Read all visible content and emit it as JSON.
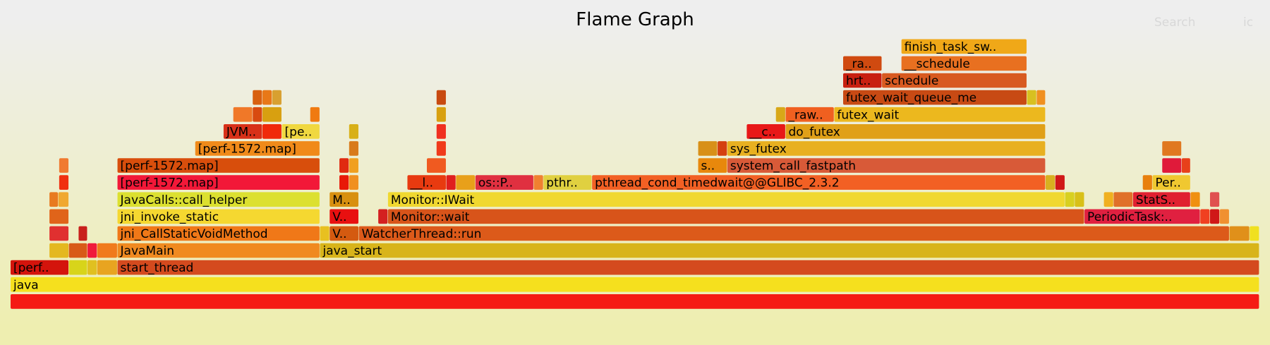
{
  "chart_data": {
    "type": "flame",
    "title": "Flame Graph",
    "search_label": "Search",
    "ic_label": "ic",
    "xlim": [
      0,
      1542
    ],
    "frames": [
      {
        "name": null,
        "level": 0,
        "start": 0,
        "width": 1542,
        "color": "#f51a14"
      },
      {
        "name": "java",
        "level": 1,
        "start": 0,
        "width": 1542,
        "color": "#f5e01e"
      },
      {
        "name": "[perf..",
        "level": 2,
        "start": 0,
        "width": 72,
        "color": "#d4140c"
      },
      {
        "name": null,
        "level": 2,
        "start": 72,
        "width": 23,
        "color": "#d8d41a"
      },
      {
        "name": null,
        "level": 2,
        "start": 95,
        "width": 12,
        "color": "#e0c020"
      },
      {
        "name": null,
        "level": 2,
        "start": 107,
        "width": 25,
        "color": "#e8a420"
      },
      {
        "name": "start_thread",
        "level": 2,
        "start": 132,
        "width": 1410,
        "color": "#d44a1e"
      },
      {
        "name": null,
        "level": 3,
        "start": 48,
        "width": 24,
        "color": "#e4b820"
      },
      {
        "name": null,
        "level": 3,
        "start": 72,
        "width": 23,
        "color": "#d85a18"
      },
      {
        "name": null,
        "level": 3,
        "start": 95,
        "width": 12,
        "color": "#f01a3c"
      },
      {
        "name": null,
        "level": 3,
        "start": 107,
        "width": 25,
        "color": "#f07a1c"
      },
      {
        "name": "JavaMain",
        "level": 3,
        "start": 132,
        "width": 250,
        "color": "#f08a20"
      },
      {
        "name": "java_start",
        "level": 3,
        "start": 382,
        "width": 1160,
        "color": "#d8b41a"
      },
      {
        "name": null,
        "level": 4,
        "start": 48,
        "width": 24,
        "color": "#e03030"
      },
      {
        "name": null,
        "level": 4,
        "start": 84,
        "width": 11,
        "color": "#c8201c"
      },
      {
        "name": "jni_CallStaticVoidMethod",
        "level": 4,
        "start": 132,
        "width": 250,
        "color": "#f07818"
      },
      {
        "name": null,
        "level": 4,
        "start": 382,
        "width": 12,
        "color": "#e8c020"
      },
      {
        "name": "V..",
        "level": 4,
        "start": 394,
        "width": 36,
        "color": "#d45a10"
      },
      {
        "name": "WatcherThread::run",
        "level": 4,
        "start": 430,
        "width": 1075,
        "color": "#dc5a1a"
      },
      {
        "name": null,
        "level": 4,
        "start": 1505,
        "width": 25,
        "color": "#e0901a"
      },
      {
        "name": null,
        "level": 4,
        "start": 1530,
        "width": 12,
        "color": "#f0e020"
      },
      {
        "name": null,
        "level": 5,
        "start": 48,
        "width": 24,
        "color": "#e0641a"
      },
      {
        "name": "jni_invoke_static",
        "level": 5,
        "start": 132,
        "width": 250,
        "color": "#f5d830"
      },
      {
        "name": "V..",
        "level": 5,
        "start": 394,
        "width": 36,
        "color": "#e81010"
      },
      {
        "name": null,
        "level": 5,
        "start": 454,
        "width": 12,
        "color": "#d42020"
      },
      {
        "name": "Monitor::wait",
        "level": 5,
        "start": 466,
        "width": 860,
        "color": "#d8541a"
      },
      {
        "name": "PeriodicTask:..",
        "level": 5,
        "start": 1326,
        "width": 143,
        "color": "#e02040"
      },
      {
        "name": null,
        "level": 5,
        "start": 1469,
        "width": 12,
        "color": "#f04020"
      },
      {
        "name": null,
        "level": 5,
        "start": 1481,
        "width": 12,
        "color": "#d01818"
      },
      {
        "name": null,
        "level": 5,
        "start": 1493,
        "width": 12,
        "color": "#f09030"
      },
      {
        "name": null,
        "level": 6,
        "start": 48,
        "width": 11,
        "color": "#e87a20"
      },
      {
        "name": null,
        "level": 6,
        "start": 59,
        "width": 13,
        "color": "#f0a830"
      },
      {
        "name": "JavaCalls::call_helper",
        "level": 6,
        "start": 132,
        "width": 250,
        "color": "#dce030"
      },
      {
        "name": "M..",
        "level": 6,
        "start": 394,
        "width": 36,
        "color": "#d89010"
      },
      {
        "name": "Monitor::IWait",
        "level": 6,
        "start": 466,
        "width": 836,
        "color": "#f0d830"
      },
      {
        "name": null,
        "level": 6,
        "start": 1302,
        "width": 12,
        "color": "#d8d020"
      },
      {
        "name": null,
        "level": 6,
        "start": 1314,
        "width": 12,
        "color": "#d8c018"
      },
      {
        "name": null,
        "level": 6,
        "start": 1350,
        "width": 12,
        "color": "#f0b020"
      },
      {
        "name": null,
        "level": 6,
        "start": 1362,
        "width": 24,
        "color": "#e0702a"
      },
      {
        "name": "StatS..",
        "level": 6,
        "start": 1386,
        "width": 71,
        "color": "#e02030"
      },
      {
        "name": null,
        "level": 6,
        "start": 1457,
        "width": 12,
        "color": "#f09010"
      },
      {
        "name": null,
        "level": 6,
        "start": 1481,
        "width": 12,
        "color": "#e05050"
      },
      {
        "name": null,
        "level": 7,
        "start": 60,
        "width": 12,
        "color": "#f03010"
      },
      {
        "name": "[perf-1572.map]",
        "level": 7,
        "start": 132,
        "width": 250,
        "color": "#f21838"
      },
      {
        "name": null,
        "level": 7,
        "start": 406,
        "width": 12,
        "color": "#e81808"
      },
      {
        "name": null,
        "level": 7,
        "start": 418,
        "width": 12,
        "color": "#f09020"
      },
      {
        "name": "__l..",
        "level": 7,
        "start": 490,
        "width": 48,
        "color": "#e83a10"
      },
      {
        "name": null,
        "level": 7,
        "start": 538,
        "width": 12,
        "color": "#e01e1e"
      },
      {
        "name": null,
        "level": 7,
        "start": 550,
        "width": 24,
        "color": "#e8a01a"
      },
      {
        "name": "os::P..",
        "level": 7,
        "start": 574,
        "width": 72,
        "color": "#e03040"
      },
      {
        "name": null,
        "level": 7,
        "start": 646,
        "width": 12,
        "color": "#f08030"
      },
      {
        "name": "pthr..",
        "level": 7,
        "start": 658,
        "width": 60,
        "color": "#e0d040"
      },
      {
        "name": "pthread_cond_timedwait@@GLIBC_2.3.2",
        "level": 7,
        "start": 718,
        "width": 560,
        "color": "#f26024"
      },
      {
        "name": null,
        "level": 7,
        "start": 1278,
        "width": 12,
        "color": "#d8b020"
      },
      {
        "name": null,
        "level": 7,
        "start": 1290,
        "width": 12,
        "color": "#d01818"
      },
      {
        "name": null,
        "level": 7,
        "start": 1398,
        "width": 12,
        "color": "#e8800e"
      },
      {
        "name": "Per..",
        "level": 7,
        "start": 1410,
        "width": 47,
        "color": "#f0c830"
      },
      {
        "name": null,
        "level": 8,
        "start": 60,
        "width": 12,
        "color": "#f07a30"
      },
      {
        "name": "[perf-1572.map]",
        "level": 8,
        "start": 132,
        "width": 250,
        "color": "#d84e0c"
      },
      {
        "name": null,
        "level": 8,
        "start": 406,
        "width": 12,
        "color": "#e02a10"
      },
      {
        "name": null,
        "level": 8,
        "start": 418,
        "width": 12,
        "color": "#f0a020"
      },
      {
        "name": null,
        "level": 8,
        "start": 514,
        "width": 24,
        "color": "#f05a20"
      },
      {
        "name": "s..",
        "level": 8,
        "start": 849,
        "width": 36,
        "color": "#e8880c"
      },
      {
        "name": "system_call_fastpath",
        "level": 8,
        "start": 885,
        "width": 393,
        "color": "#d85a38"
      },
      {
        "name": null,
        "level": 8,
        "start": 1422,
        "width": 24,
        "color": "#e01a3a"
      },
      {
        "name": null,
        "level": 8,
        "start": 1446,
        "width": 11,
        "color": "#e8401a"
      },
      {
        "name": "[perf-1572.map]",
        "level": 9,
        "start": 228,
        "width": 154,
        "color": "#f08a1a"
      },
      {
        "name": null,
        "level": 9,
        "start": 418,
        "width": 12,
        "color": "#d87a1a"
      },
      {
        "name": null,
        "level": 9,
        "start": 526,
        "width": 12,
        "color": "#f03a1a"
      },
      {
        "name": null,
        "level": 9,
        "start": 849,
        "width": 24,
        "color": "#d89018"
      },
      {
        "name": null,
        "level": 9,
        "start": 873,
        "width": 12,
        "color": "#d44010"
      },
      {
        "name": "sys_futex",
        "level": 9,
        "start": 885,
        "width": 393,
        "color": "#e8b020"
      },
      {
        "name": null,
        "level": 9,
        "start": 1422,
        "width": 24,
        "color": "#e07820"
      },
      {
        "name": "JVM..",
        "level": 10,
        "start": 263,
        "width": 48,
        "color": "#d83018"
      },
      {
        "name": null,
        "level": 10,
        "start": 311,
        "width": 24,
        "color": "#f02a0a"
      },
      {
        "name": "[pe..",
        "level": 10,
        "start": 335,
        "width": 47,
        "color": "#f0d840"
      },
      {
        "name": null,
        "level": 10,
        "start": 418,
        "width": 12,
        "color": "#d8b018"
      },
      {
        "name": null,
        "level": 10,
        "start": 526,
        "width": 12,
        "color": "#f03020"
      },
      {
        "name": "__c..",
        "level": 10,
        "start": 909,
        "width": 48,
        "color": "#e81818"
      },
      {
        "name": "do_futex",
        "level": 10,
        "start": 957,
        "width": 321,
        "color": "#e0a018"
      },
      {
        "name": null,
        "level": 11,
        "start": 275,
        "width": 24,
        "color": "#f07828"
      },
      {
        "name": null,
        "level": 11,
        "start": 299,
        "width": 12,
        "color": "#d84a10"
      },
      {
        "name": null,
        "level": 11,
        "start": 311,
        "width": 24,
        "color": "#d8a010"
      },
      {
        "name": null,
        "level": 11,
        "start": 370,
        "width": 12,
        "color": "#f07a10"
      },
      {
        "name": null,
        "level": 11,
        "start": 526,
        "width": 12,
        "color": "#d8a010"
      },
      {
        "name": null,
        "level": 11,
        "start": 945,
        "width": 12,
        "color": "#d8a818"
      },
      {
        "name": "_raw..",
        "level": 11,
        "start": 957,
        "width": 60,
        "color": "#f06020"
      },
      {
        "name": "futex_wait",
        "level": 11,
        "start": 1017,
        "width": 261,
        "color": "#ecb81e"
      },
      {
        "name": null,
        "level": 12,
        "start": 299,
        "width": 12,
        "color": "#d86010"
      },
      {
        "name": null,
        "level": 12,
        "start": 311,
        "width": 12,
        "color": "#e87818"
      },
      {
        "name": null,
        "level": 12,
        "start": 323,
        "width": 12,
        "color": "#d8a030"
      },
      {
        "name": null,
        "level": 12,
        "start": 526,
        "width": 12,
        "color": "#c84a10"
      },
      {
        "name": "futex_wait_queue_me",
        "level": 12,
        "start": 1028,
        "width": 227,
        "color": "#c84a14"
      },
      {
        "name": null,
        "level": 12,
        "start": 1255,
        "width": 12,
        "color": "#d8c020"
      },
      {
        "name": null,
        "level": 12,
        "start": 1267,
        "width": 11,
        "color": "#f09020"
      },
      {
        "name": "hrt..",
        "level": 13,
        "start": 1028,
        "width": 48,
        "color": "#c82010"
      },
      {
        "name": "schedule",
        "level": 13,
        "start": 1076,
        "width": 179,
        "color": "#d85a20"
      },
      {
        "name": "_ra..",
        "level": 14,
        "start": 1028,
        "width": 48,
        "color": "#d04a10"
      },
      {
        "name": "__schedule",
        "level": 14,
        "start": 1100,
        "width": 155,
        "color": "#e87020"
      },
      {
        "name": "finish_task_sw..",
        "level": 15,
        "start": 1100,
        "width": 155,
        "color": "#f0a818"
      }
    ]
  }
}
